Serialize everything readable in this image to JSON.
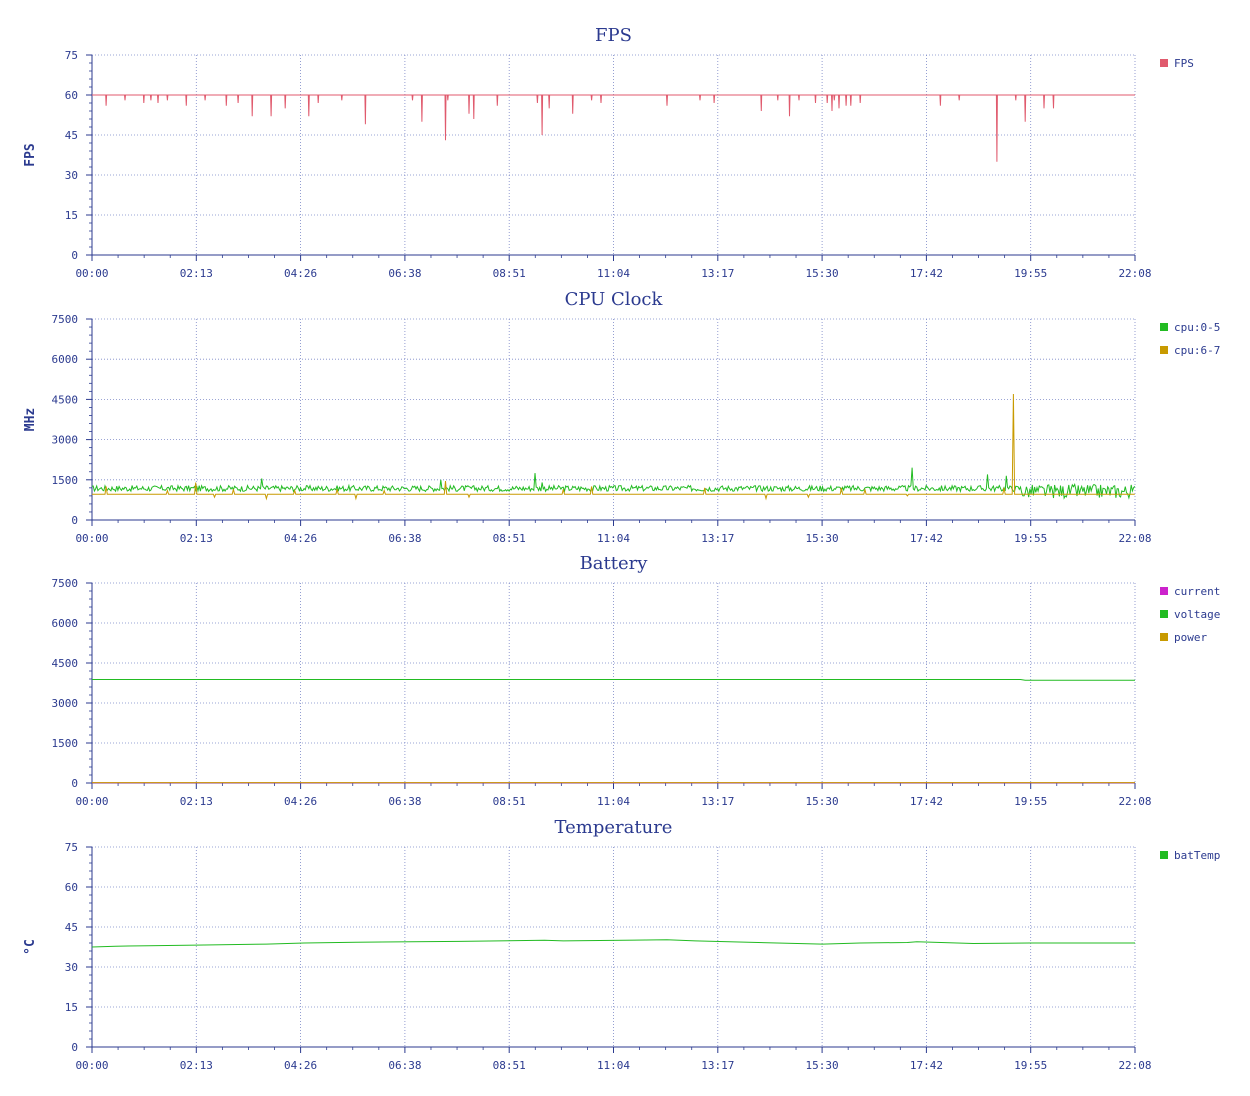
{
  "chart_data": [
    {
      "type": "line",
      "title": "FPS",
      "ylabel": "FPS",
      "ylim": [
        0,
        75
      ],
      "yticks": [
        0,
        15,
        30,
        45,
        60,
        75
      ],
      "xticks": [
        "00:00",
        "02:13",
        "04:26",
        "06:38",
        "08:51",
        "11:04",
        "13:17",
        "15:30",
        "17:42",
        "19:55",
        "22:08"
      ],
      "grid": true,
      "legend": "right",
      "series": [
        {
          "name": "FPS",
          "color": "#e05a6d",
          "baseline": 60,
          "dips": [
            [
              0.3,
              56
            ],
            [
              0.7,
              58
            ],
            [
              1.1,
              57
            ],
            [
              1.25,
              58
            ],
            [
              1.4,
              57
            ],
            [
              1.6,
              58
            ],
            [
              2.0,
              56
            ],
            [
              2.4,
              58
            ],
            [
              2.85,
              56
            ],
            [
              3.1,
              57
            ],
            [
              3.4,
              52
            ],
            [
              3.8,
              52
            ],
            [
              4.1,
              55
            ],
            [
              4.6,
              52
            ],
            [
              4.8,
              57
            ],
            [
              5.3,
              58
            ],
            [
              5.8,
              49
            ],
            [
              6.8,
              58
            ],
            [
              7.0,
              50
            ],
            [
              7.5,
              43
            ],
            [
              7.55,
              58
            ],
            [
              8.0,
              53
            ],
            [
              8.1,
              51
            ],
            [
              8.6,
              56
            ],
            [
              9.45,
              57
            ],
            [
              9.55,
              45
            ],
            [
              9.7,
              55
            ],
            [
              10.2,
              53
            ],
            [
              10.6,
              58
            ],
            [
              10.8,
              57
            ],
            [
              12.2,
              56
            ],
            [
              12.9,
              58
            ],
            [
              13.2,
              57
            ],
            [
              14.2,
              54
            ],
            [
              14.55,
              58
            ],
            [
              14.8,
              52
            ],
            [
              15.0,
              58
            ],
            [
              15.35,
              57
            ],
            [
              15.6,
              57
            ],
            [
              15.7,
              54
            ],
            [
              15.75,
              58
            ],
            [
              15.85,
              55
            ],
            [
              16.0,
              56
            ],
            [
              16.1,
              56
            ],
            [
              16.3,
              57
            ],
            [
              18.0,
              56
            ],
            [
              18.4,
              58
            ],
            [
              19.2,
              35
            ],
            [
              19.6,
              58
            ],
            [
              19.8,
              50
            ],
            [
              20.2,
              55
            ],
            [
              20.4,
              55
            ]
          ]
        }
      ]
    },
    {
      "type": "line",
      "title": "CPU Clock",
      "ylabel": "MHz",
      "ylim": [
        0,
        7500
      ],
      "yticks": [
        0,
        1500,
        3000,
        4500,
        6000,
        7500
      ],
      "xticks": [
        "00:00",
        "02:13",
        "04:26",
        "06:38",
        "08:51",
        "11:04",
        "13:17",
        "15:30",
        "17:42",
        "19:55",
        "22:08"
      ],
      "grid": true,
      "legend": "right",
      "series": [
        {
          "name": "cpu:0-5",
          "color": "#22bb22",
          "baseline": 1200,
          "spikes": [
            [
              3.6,
              1550
            ],
            [
              7.4,
              1500
            ],
            [
              9.4,
              1750
            ],
            [
              9.55,
              1400
            ],
            [
              17.4,
              1950
            ],
            [
              19.0,
              1700
            ],
            [
              19.4,
              1650
            ]
          ]
        },
        {
          "name": "cpu:6-7",
          "color": "#c89a00",
          "baseline": 960,
          "spikes": [
            [
              0.3,
              1250
            ],
            [
              1.6,
              1100
            ],
            [
              2.2,
              1400
            ],
            [
              2.6,
              850
            ],
            [
              3.0,
              1150
            ],
            [
              3.7,
              800
            ],
            [
              4.3,
              1100
            ],
            [
              5.2,
              1150
            ],
            [
              5.6,
              800
            ],
            [
              6.2,
              1100
            ],
            [
              7.5,
              1450
            ],
            [
              8.0,
              850
            ],
            [
              10.0,
              1150
            ],
            [
              10.6,
              1250
            ],
            [
              13.0,
              1200
            ],
            [
              14.3,
              800
            ],
            [
              15.2,
              850
            ],
            [
              15.9,
              1200
            ],
            [
              16.4,
              1150
            ],
            [
              17.3,
              900
            ],
            [
              19.35,
              1200
            ],
            [
              19.55,
              4700
            ]
          ]
        }
      ]
    },
    {
      "type": "line",
      "title": "Battery",
      "ylabel": "",
      "ylim": [
        0,
        7500
      ],
      "yticks": [
        0,
        1500,
        3000,
        4500,
        6000,
        7500
      ],
      "xticks": [
        "00:00",
        "02:13",
        "04:26",
        "06:38",
        "08:51",
        "11:04",
        "13:17",
        "15:30",
        "17:42",
        "19:55",
        "22:08"
      ],
      "grid": true,
      "legend": "right",
      "series": [
        {
          "name": "current",
          "color": "#cc22cc",
          "x": [
            0,
            22.13
          ],
          "y": [
            10,
            10
          ]
        },
        {
          "name": "voltage",
          "color": "#22bb22",
          "x": [
            0,
            19.7,
            19.8,
            22.13
          ],
          "y": [
            3880,
            3880,
            3850,
            3850
          ]
        },
        {
          "name": "power",
          "color": "#c89a00",
          "x": [
            0,
            22.13
          ],
          "y": [
            15,
            15
          ]
        }
      ]
    },
    {
      "type": "line",
      "title": "Temperature",
      "ylabel": "°C",
      "ylim": [
        0,
        75
      ],
      "yticks": [
        0,
        15,
        30,
        45,
        60,
        75
      ],
      "xticks": [
        "00:00",
        "02:13",
        "04:26",
        "06:38",
        "08:51",
        "11:04",
        "13:17",
        "15:30",
        "17:42",
        "19:55",
        "22:08"
      ],
      "grid": true,
      "legend": "right",
      "series": [
        {
          "name": "batTemp",
          "color": "#22bb22",
          "x": [
            0,
            0.5,
            1.2,
            2.2,
            3.7,
            4.5,
            5.6,
            7.8,
            9.6,
            10.0,
            12.2,
            12.8,
            15.5,
            16.3,
            17.3,
            17.5,
            18.7,
            19.9,
            22.13
          ],
          "y": [
            37.5,
            37.8,
            38.0,
            38.2,
            38.6,
            39.0,
            39.3,
            39.6,
            40.0,
            39.8,
            40.2,
            39.8,
            38.6,
            39.0,
            39.2,
            39.5,
            38.8,
            39.0,
            39.0
          ]
        }
      ]
    }
  ]
}
